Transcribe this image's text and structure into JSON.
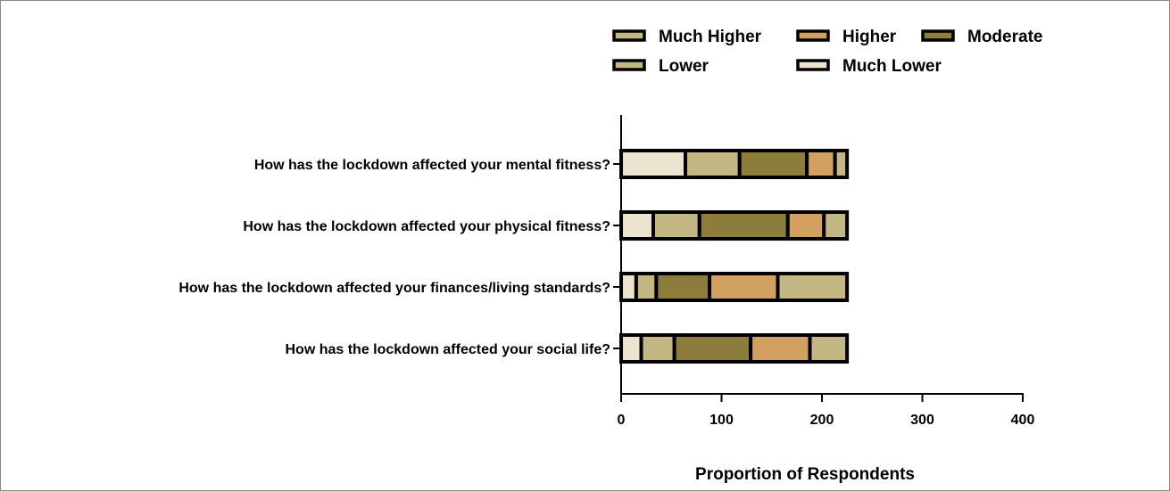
{
  "chart_data": {
    "type": "bar",
    "orientation": "horizontal",
    "stacked": true,
    "title": "",
    "xlabel": "Proportion of Respondents",
    "ylabel": "",
    "xlim": [
      0,
      400
    ],
    "xticks": [
      0,
      100,
      200,
      300,
      400
    ],
    "grid": false,
    "legend_position": "top-right",
    "categories": [
      "How has the lockdown affected your mental fitness?",
      "How has the lockdown affected your physical fitness?",
      "How has the lockdown affected your finances/living standards?",
      "How has the lockdown affected your social life?"
    ],
    "series": [
      {
        "name": "Much Lower",
        "color": "#ede4cf",
        "values": [
          64,
          32,
          15,
          20
        ]
      },
      {
        "name": "Lower",
        "color": "#c3b784",
        "values": [
          54,
          46,
          20,
          33
        ]
      },
      {
        "name": "Moderate",
        "color": "#8c7d3c",
        "values": [
          67,
          88,
          53,
          76
        ]
      },
      {
        "name": "Higher",
        "color": "#d2a15f",
        "values": [
          28,
          36,
          68,
          59
        ]
      },
      {
        "name": "Much Higher",
        "color": "#c3b784",
        "values": [
          12,
          23,
          69,
          37
        ]
      }
    ],
    "legend_order": [
      "Much Higher",
      "Higher",
      "Moderate",
      "Lower",
      "Much Lower"
    ]
  }
}
